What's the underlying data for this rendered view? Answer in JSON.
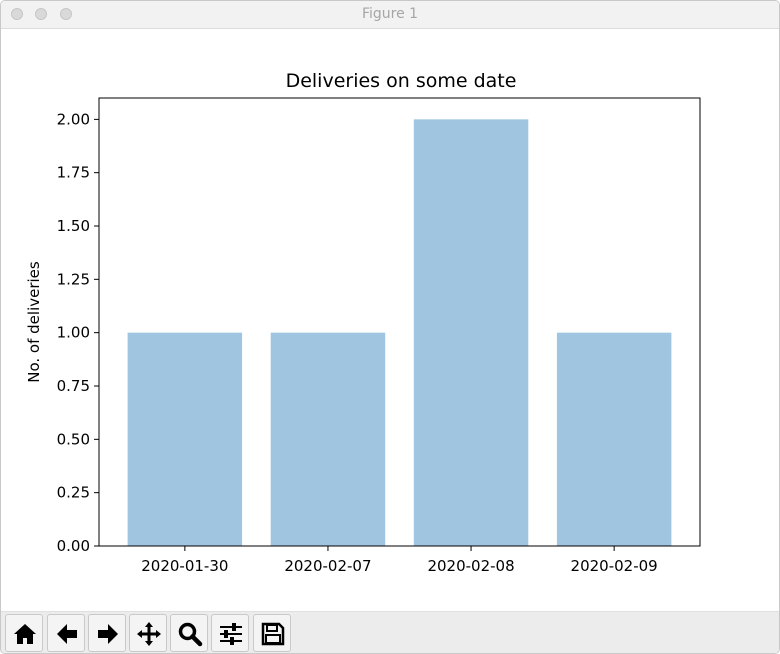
{
  "window": {
    "title": "Figure 1"
  },
  "toolbar": {
    "buttons": [
      {
        "name": "home-button",
        "icon": "home-icon"
      },
      {
        "name": "back-button",
        "icon": "arrow-left-icon"
      },
      {
        "name": "forward-button",
        "icon": "arrow-right-icon"
      },
      {
        "name": "pan-button",
        "icon": "move-icon"
      },
      {
        "name": "zoom-button",
        "icon": "zoom-icon"
      },
      {
        "name": "configure-subplots-button",
        "icon": "sliders-icon"
      },
      {
        "name": "save-button",
        "icon": "save-icon"
      }
    ]
  },
  "chart_data": {
    "type": "bar",
    "title": "Deliveries on some date",
    "xlabel": "",
    "ylabel": "No. of deliveries",
    "categories": [
      "2020-01-30",
      "2020-02-07",
      "2020-02-08",
      "2020-02-09"
    ],
    "values": [
      1,
      1,
      2,
      1
    ],
    "ylim": [
      0,
      2.1
    ],
    "yticks": [
      0.0,
      0.25,
      0.5,
      0.75,
      1.0,
      1.25,
      1.5,
      1.75,
      2.0
    ],
    "ytick_labels": [
      "0.00",
      "0.25",
      "0.50",
      "0.75",
      "1.00",
      "1.25",
      "1.50",
      "1.75",
      "2.00"
    ],
    "bar_color": "#9fc5e0",
    "grid": false
  }
}
